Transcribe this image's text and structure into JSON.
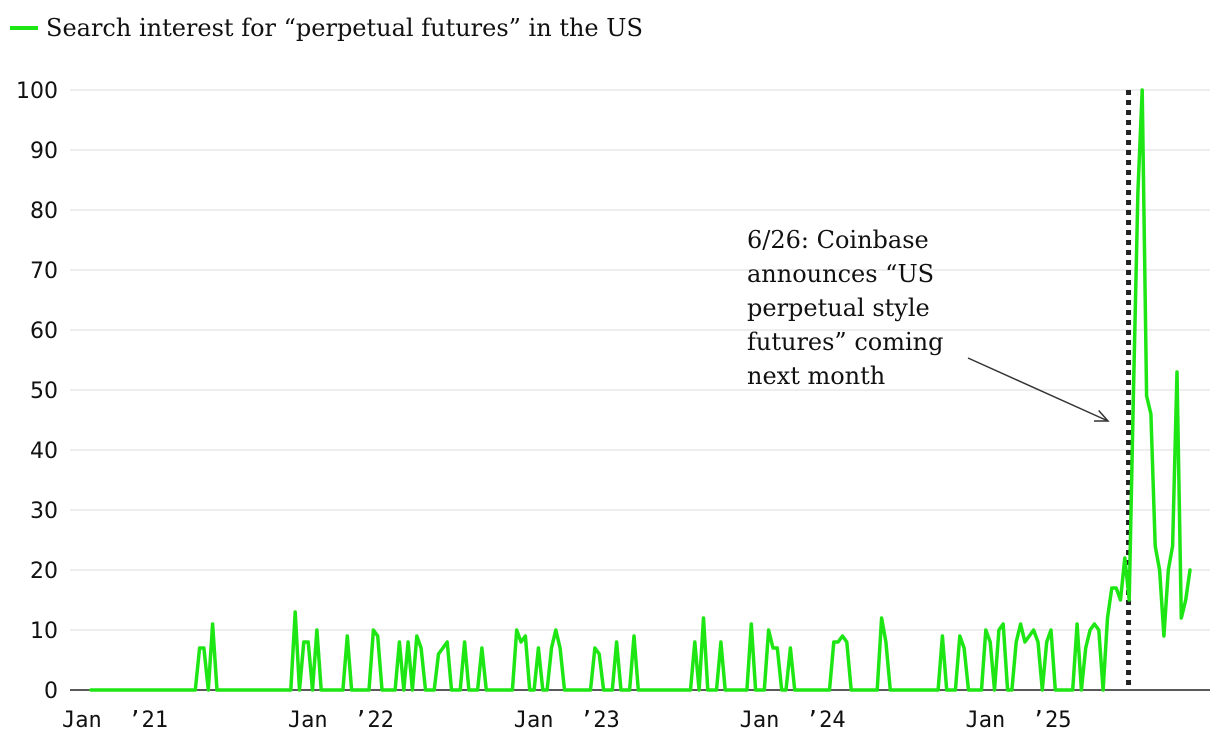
{
  "chart_data": {
    "type": "line",
    "title": "",
    "legend": {
      "label": "Search interest for “perpetual futures” in the US",
      "placement": "top-left"
    },
    "xlabel": "",
    "ylabel": "",
    "ylim": [
      0,
      100
    ],
    "yticks": [
      "0",
      "10",
      "20",
      "30",
      "40",
      "50",
      "60",
      "70",
      "80",
      "90",
      "100"
    ],
    "xticks": [
      {
        "label": "Jan  ’21",
        "t": 0
      },
      {
        "label": "Jan  ’22",
        "t": 52
      },
      {
        "label": "Jan  ’23",
        "t": 104
      },
      {
        "label": "Jan  ’24",
        "t": 156
      },
      {
        "label": "Jan  ’25",
        "t": 208
      }
    ],
    "grid": true,
    "series": [
      {
        "name": "Search interest for “perpetual futures” in the US",
        "color": "#1ee614",
        "points": [
          [
            0,
            0
          ],
          [
            24,
            0
          ],
          [
            25,
            7
          ],
          [
            26,
            7
          ],
          [
            27,
            0
          ],
          [
            28,
            11
          ],
          [
            29,
            0
          ],
          [
            46,
            0
          ],
          [
            47,
            13
          ],
          [
            48,
            0
          ],
          [
            49,
            8
          ],
          [
            50,
            8
          ],
          [
            51,
            0
          ],
          [
            52,
            10
          ],
          [
            53,
            0
          ],
          [
            58,
            0
          ],
          [
            59,
            9
          ],
          [
            60,
            0
          ],
          [
            64,
            0
          ],
          [
            65,
            10
          ],
          [
            66,
            9
          ],
          [
            67,
            0
          ],
          [
            70,
            0
          ],
          [
            71,
            8
          ],
          [
            72,
            0
          ],
          [
            73,
            8
          ],
          [
            74,
            0
          ],
          [
            75,
            9
          ],
          [
            76,
            7
          ],
          [
            77,
            0
          ],
          [
            79,
            0
          ],
          [
            80,
            6
          ],
          [
            81,
            7
          ],
          [
            82,
            8
          ],
          [
            83,
            0
          ],
          [
            85,
            0
          ],
          [
            86,
            8
          ],
          [
            87,
            0
          ],
          [
            89,
            0
          ],
          [
            90,
            7
          ],
          [
            91,
            0
          ],
          [
            97,
            0
          ],
          [
            98,
            10
          ],
          [
            99,
            8
          ],
          [
            100,
            9
          ],
          [
            101,
            0
          ],
          [
            102,
            0
          ],
          [
            103,
            7
          ],
          [
            104,
            0
          ],
          [
            105,
            0
          ],
          [
            106,
            7
          ],
          [
            107,
            10
          ],
          [
            108,
            7
          ],
          [
            109,
            0
          ],
          [
            115,
            0
          ],
          [
            116,
            7
          ],
          [
            117,
            6
          ],
          [
            118,
            0
          ],
          [
            120,
            0
          ],
          [
            121,
            8
          ],
          [
            122,
            0
          ],
          [
            124,
            0
          ],
          [
            125,
            9
          ],
          [
            126,
            0
          ],
          [
            138,
            0
          ],
          [
            139,
            8
          ],
          [
            140,
            0
          ],
          [
            141,
            12
          ],
          [
            142,
            0
          ],
          [
            144,
            0
          ],
          [
            145,
            8
          ],
          [
            146,
            0
          ],
          [
            151,
            0
          ],
          [
            152,
            11
          ],
          [
            153,
            0
          ],
          [
            155,
            0
          ],
          [
            156,
            10
          ],
          [
            157,
            7
          ],
          [
            158,
            7
          ],
          [
            159,
            0
          ],
          [
            160,
            0
          ],
          [
            161,
            7
          ],
          [
            162,
            0
          ],
          [
            170,
            0
          ],
          [
            171,
            8
          ],
          [
            172,
            8
          ],
          [
            173,
            9
          ],
          [
            174,
            8
          ],
          [
            175,
            0
          ],
          [
            181,
            0
          ],
          [
            182,
            12
          ],
          [
            183,
            8
          ],
          [
            184,
            0
          ],
          [
            195,
            0
          ],
          [
            196,
            9
          ],
          [
            197,
            0
          ],
          [
            199,
            0
          ],
          [
            200,
            9
          ],
          [
            201,
            7
          ],
          [
            202,
            0
          ],
          [
            205,
            0
          ],
          [
            206,
            10
          ],
          [
            207,
            8
          ],
          [
            208,
            0
          ],
          [
            209,
            10
          ],
          [
            210,
            11
          ],
          [
            211,
            0
          ],
          [
            212,
            0
          ],
          [
            213,
            8
          ],
          [
            214,
            11
          ],
          [
            215,
            8
          ],
          [
            216,
            9
          ],
          [
            217,
            10
          ],
          [
            218,
            8
          ],
          [
            219,
            0
          ],
          [
            220,
            8
          ],
          [
            221,
            10
          ],
          [
            222,
            0
          ],
          [
            226,
            0
          ],
          [
            227,
            11
          ],
          [
            228,
            0
          ],
          [
            229,
            7
          ],
          [
            230,
            10
          ],
          [
            231,
            11
          ],
          [
            232,
            10
          ],
          [
            233,
            0
          ],
          [
            234,
            12
          ],
          [
            235,
            17
          ],
          [
            236,
            17
          ],
          [
            237,
            15
          ],
          [
            238,
            22
          ],
          [
            239,
            15
          ],
          [
            240,
            50
          ],
          [
            241,
            83
          ],
          [
            242,
            100
          ],
          [
            243,
            49
          ],
          [
            244,
            46
          ],
          [
            245,
            24
          ],
          [
            246,
            20
          ],
          [
            247,
            9
          ],
          [
            248,
            20
          ],
          [
            249,
            24
          ],
          [
            250,
            53
          ],
          [
            251,
            12
          ],
          [
            252,
            15
          ],
          [
            253,
            20
          ]
        ]
      }
    ],
    "event_marker": {
      "t": 240,
      "style": "dotted"
    },
    "annotation": {
      "lines": [
        "6/26: Coinbase",
        "announces “US",
        "perpetual style",
        "futures” coming",
        "next month"
      ]
    }
  }
}
